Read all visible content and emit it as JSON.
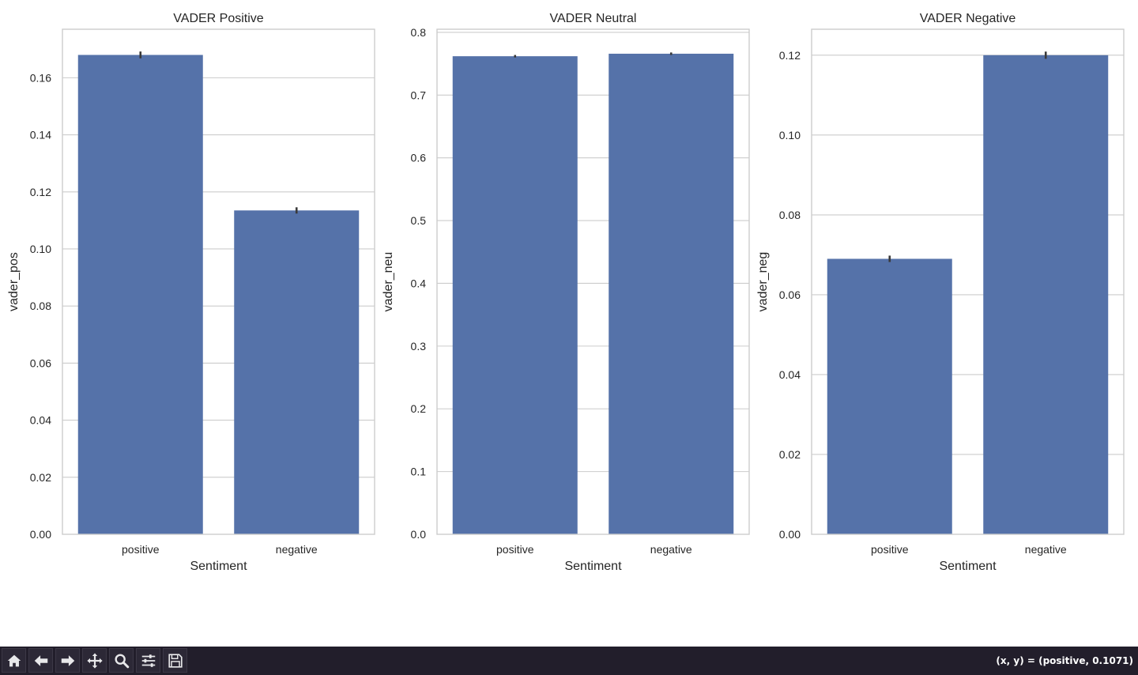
{
  "window": {
    "coordinate_readout": "(x, y) = (positive, 0.1071)"
  },
  "toolbar": {
    "buttons": [
      {
        "name": "home-button",
        "icon": "home-icon"
      },
      {
        "name": "back-button",
        "icon": "arrow-left-icon"
      },
      {
        "name": "forward-button",
        "icon": "arrow-right-icon"
      },
      {
        "name": "pan-button",
        "icon": "move-icon"
      },
      {
        "name": "zoom-button",
        "icon": "magnifier-icon"
      },
      {
        "name": "configure-subplots-button",
        "icon": "sliders-icon"
      },
      {
        "name": "save-button",
        "icon": "floppy-disk-icon"
      }
    ]
  },
  "colors": {
    "bar": "#5572a9",
    "errorbar": "#3a3a3a",
    "grid": "#cccccc",
    "axes_frame": "#cccccc",
    "text": "#262626",
    "toolbar_bg": "#221e2b"
  },
  "chart_data": [
    {
      "type": "bar",
      "title": "VADER Positive",
      "xlabel": "Sentiment",
      "ylabel": "vader_pos",
      "categories": [
        "positive",
        "negative"
      ],
      "values": [
        0.168,
        0.1135
      ],
      "error": [
        0.0012,
        0.0011
      ],
      "ylim": [
        0,
        0.177
      ],
      "yticks": [
        0,
        0.02,
        0.04,
        0.06,
        0.08,
        0.1,
        0.12,
        0.14,
        0.16
      ],
      "ytick_labels": [
        "0.00",
        "0.02",
        "0.04",
        "0.06",
        "0.08",
        "0.10",
        "0.12",
        "0.14",
        "0.16"
      ],
      "grid": true
    },
    {
      "type": "bar",
      "title": "VADER Neutral",
      "xlabel": "Sentiment",
      "ylabel": "vader_neu",
      "categories": [
        "positive",
        "negative"
      ],
      "values": [
        0.762,
        0.766
      ],
      "error": [
        0.002,
        0.002
      ],
      "ylim": [
        0,
        0.805
      ],
      "yticks": [
        0,
        0.1,
        0.2,
        0.3,
        0.4,
        0.5,
        0.6,
        0.7,
        0.8
      ],
      "ytick_labels": [
        "0.0",
        "0.1",
        "0.2",
        "0.3",
        "0.4",
        "0.5",
        "0.6",
        "0.7",
        "0.8"
      ],
      "grid": true
    },
    {
      "type": "bar",
      "title": "VADER Negative",
      "xlabel": "Sentiment",
      "ylabel": "vader_neg",
      "categories": [
        "positive",
        "negative"
      ],
      "values": [
        0.069,
        0.12
      ],
      "error": [
        0.0008,
        0.0009
      ],
      "ylim": [
        0,
        0.1265
      ],
      "yticks": [
        0,
        0.02,
        0.04,
        0.06,
        0.08,
        0.1,
        0.12
      ],
      "ytick_labels": [
        "0.00",
        "0.02",
        "0.04",
        "0.06",
        "0.08",
        "0.10",
        "0.12"
      ],
      "grid": true
    }
  ]
}
